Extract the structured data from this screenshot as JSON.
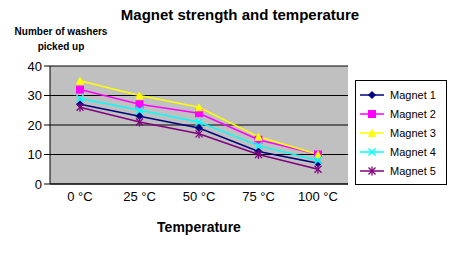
{
  "chart_data": {
    "type": "line",
    "title": "Magnet strength and temperature",
    "y_label": "Number of washers picked up",
    "x_label": "Temperature",
    "categories": [
      "0 °C",
      "25 °C",
      "50 °C",
      "75 °C",
      "100 °C"
    ],
    "series": [
      {
        "name": "Magnet 1",
        "color": "#000080",
        "marker": "diamond",
        "values": [
          27,
          23,
          19,
          11,
          7
        ]
      },
      {
        "name": "Magnet 2",
        "color": "#FF00FF",
        "marker": "square",
        "values": [
          32,
          27,
          24,
          15,
          10
        ]
      },
      {
        "name": "Magnet 3",
        "color": "#FFFF00",
        "marker": "triangle",
        "values": [
          35,
          30,
          26,
          16,
          10
        ]
      },
      {
        "name": "Magnet 4",
        "color": "#00FFFF",
        "marker": "x",
        "values": [
          29,
          25,
          21,
          13,
          8
        ]
      },
      {
        "name": "Magnet 5",
        "color": "#800080",
        "marker": "star",
        "values": [
          26,
          21,
          17,
          10,
          5
        ]
      }
    ],
    "ylim": [
      0,
      40
    ],
    "yticks": [
      0,
      10,
      20,
      30,
      40
    ],
    "grid": true,
    "legend": "right"
  }
}
